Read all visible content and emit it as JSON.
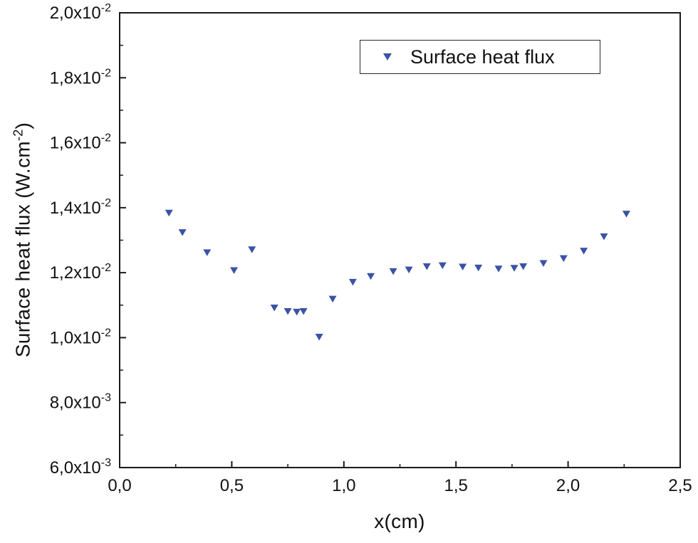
{
  "chart_data": {
    "type": "scatter",
    "title": "",
    "xlabel": "x(cm)",
    "ylabel": "Surface heat flux (W.cm⁻²)",
    "ylabel_parts": {
      "base": "Surface heat flux (W.cm",
      "sup": "-2",
      "close": ")"
    },
    "legend": {
      "label": "Surface heat flux",
      "marker": "triangle-down",
      "position": "top-center-right"
    },
    "marker_color": "#3a53a4",
    "axis_color": "#1a1a1a",
    "grid": false,
    "xlim": [
      0,
      2.5
    ],
    "ylim": [
      0.006,
      0.02
    ],
    "x_ticks": [
      {
        "label": "0,0",
        "value": 0.0
      },
      {
        "label": "0,5",
        "value": 0.5
      },
      {
        "label": "1,0",
        "value": 1.0
      },
      {
        "label": "1,5",
        "value": 1.5
      },
      {
        "label": "2,0",
        "value": 2.0
      },
      {
        "label": "2,5",
        "value": 2.5
      }
    ],
    "y_ticks": [
      {
        "label": "6,0x10",
        "sup": "-3",
        "value": 0.006
      },
      {
        "label": "8,0x10",
        "sup": "-3",
        "value": 0.008
      },
      {
        "label": "1,0x10",
        "sup": "-2",
        "value": 0.01
      },
      {
        "label": "1,2x10",
        "sup": "-2",
        "value": 0.012
      },
      {
        "label": "1,4x10",
        "sup": "-2",
        "value": 0.014
      },
      {
        "label": "1,6x10",
        "sup": "-2",
        "value": 0.016
      },
      {
        "label": "1,8x10",
        "sup": "-2",
        "value": 0.018
      },
      {
        "label": "2,0x10",
        "sup": "-2",
        "value": 0.02
      }
    ],
    "x_minor": [
      0.25,
      0.75,
      1.25,
      1.75,
      2.25
    ],
    "y_minor": [
      0.007,
      0.009,
      0.011,
      0.013,
      0.015,
      0.017,
      0.019
    ],
    "series": [
      {
        "name": "Surface heat flux",
        "points": [
          [
            0.22,
            0.01385
          ],
          [
            0.28,
            0.01325
          ],
          [
            0.39,
            0.01263
          ],
          [
            0.51,
            0.01208
          ],
          [
            0.59,
            0.01272
          ],
          [
            0.69,
            0.01093
          ],
          [
            0.75,
            0.01082
          ],
          [
            0.79,
            0.0108
          ],
          [
            0.82,
            0.01082
          ],
          [
            0.89,
            0.01003
          ],
          [
            0.95,
            0.0112
          ],
          [
            1.04,
            0.01172
          ],
          [
            1.12,
            0.0119
          ],
          [
            1.22,
            0.01205
          ],
          [
            1.29,
            0.0121
          ],
          [
            1.37,
            0.0122
          ],
          [
            1.44,
            0.01223
          ],
          [
            1.53,
            0.01219
          ],
          [
            1.6,
            0.01216
          ],
          [
            1.69,
            0.01213
          ],
          [
            1.76,
            0.01215
          ],
          [
            1.8,
            0.0122
          ],
          [
            1.89,
            0.0123
          ],
          [
            1.98,
            0.01245
          ],
          [
            2.07,
            0.01268
          ],
          [
            2.16,
            0.01312
          ],
          [
            2.26,
            0.01382
          ]
        ]
      }
    ]
  }
}
